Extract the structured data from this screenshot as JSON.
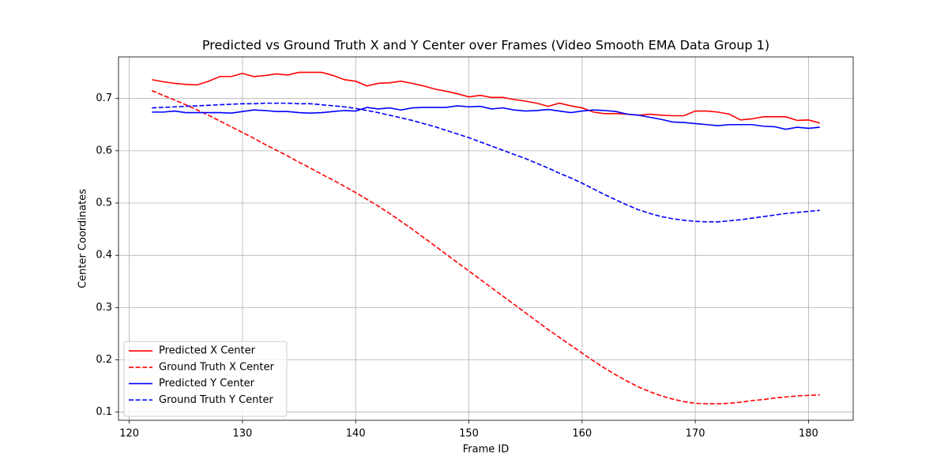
{
  "chart_data": {
    "type": "line",
    "title": "Predicted vs Ground Truth X and Y Center over Frames (Video Smooth EMA Data Group 1)",
    "xlabel": "Frame ID",
    "ylabel": "Center Coordinates",
    "x": [
      122,
      123,
      124,
      125,
      126,
      127,
      128,
      129,
      130,
      131,
      132,
      133,
      134,
      135,
      136,
      137,
      138,
      139,
      140,
      141,
      142,
      143,
      144,
      145,
      146,
      147,
      148,
      149,
      150,
      151,
      152,
      153,
      154,
      155,
      156,
      157,
      158,
      159,
      160,
      161,
      162,
      163,
      164,
      165,
      166,
      167,
      168,
      169,
      170,
      171,
      172,
      173,
      174,
      175,
      176,
      177,
      178,
      179,
      180,
      181
    ],
    "series": [
      {
        "name": "Predicted X Center",
        "color": "#ff0000",
        "linestyle": "solid",
        "values": [
          0.736,
          0.732,
          0.729,
          0.727,
          0.726,
          0.733,
          0.742,
          0.742,
          0.748,
          0.742,
          0.744,
          0.747,
          0.745,
          0.75,
          0.75,
          0.75,
          0.744,
          0.736,
          0.733,
          0.724,
          0.729,
          0.73,
          0.733,
          0.729,
          0.724,
          0.718,
          0.714,
          0.709,
          0.703,
          0.706,
          0.702,
          0.702,
          0.698,
          0.695,
          0.691,
          0.685,
          0.691,
          0.686,
          0.682,
          0.674,
          0.671,
          0.671,
          0.67,
          0.668,
          0.67,
          0.668,
          0.667,
          0.667,
          0.676,
          0.676,
          0.674,
          0.67,
          0.659,
          0.661,
          0.665,
          0.665,
          0.665,
          0.658,
          0.659,
          0.653
        ]
      },
      {
        "name": "Ground Truth X Center",
        "color": "#ff0000",
        "linestyle": "dashed",
        "values": [
          0.715,
          0.706,
          0.697,
          0.688,
          0.678,
          0.668,
          0.657,
          0.646,
          0.635,
          0.624,
          0.612,
          0.601,
          0.59,
          0.578,
          0.567,
          0.555,
          0.544,
          0.532,
          0.52,
          0.507,
          0.494,
          0.48,
          0.465,
          0.45,
          0.434,
          0.418,
          0.402,
          0.386,
          0.37,
          0.354,
          0.338,
          0.322,
          0.306,
          0.29,
          0.274,
          0.258,
          0.243,
          0.228,
          0.213,
          0.198,
          0.184,
          0.171,
          0.159,
          0.148,
          0.139,
          0.131,
          0.125,
          0.12,
          0.117,
          0.116,
          0.116,
          0.117,
          0.119,
          0.122,
          0.124,
          0.127,
          0.129,
          0.131,
          0.132,
          0.133
        ]
      },
      {
        "name": "Predicted Y Center",
        "color": "#0000ff",
        "linestyle": "solid",
        "values": [
          0.674,
          0.674,
          0.676,
          0.673,
          0.673,
          0.673,
          0.673,
          0.672,
          0.675,
          0.678,
          0.677,
          0.675,
          0.675,
          0.673,
          0.672,
          0.673,
          0.675,
          0.677,
          0.676,
          0.683,
          0.68,
          0.682,
          0.678,
          0.682,
          0.683,
          0.683,
          0.683,
          0.686,
          0.684,
          0.685,
          0.68,
          0.682,
          0.678,
          0.676,
          0.677,
          0.679,
          0.676,
          0.673,
          0.676,
          0.678,
          0.677,
          0.675,
          0.67,
          0.668,
          0.664,
          0.66,
          0.655,
          0.654,
          0.652,
          0.65,
          0.648,
          0.65,
          0.65,
          0.65,
          0.647,
          0.646,
          0.641,
          0.645,
          0.643,
          0.645
        ]
      },
      {
        "name": "Ground Truth Y Center",
        "color": "#0000ff",
        "linestyle": "dashed",
        "values": [
          0.682,
          0.683,
          0.684,
          0.685,
          0.686,
          0.687,
          0.688,
          0.689,
          0.69,
          0.69,
          0.691,
          0.691,
          0.691,
          0.69,
          0.69,
          0.688,
          0.686,
          0.684,
          0.681,
          0.677,
          0.673,
          0.668,
          0.663,
          0.658,
          0.652,
          0.646,
          0.639,
          0.632,
          0.625,
          0.617,
          0.609,
          0.601,
          0.593,
          0.585,
          0.576,
          0.567,
          0.557,
          0.548,
          0.538,
          0.527,
          0.516,
          0.506,
          0.496,
          0.487,
          0.48,
          0.474,
          0.47,
          0.467,
          0.465,
          0.464,
          0.464,
          0.466,
          0.468,
          0.471,
          0.474,
          0.477,
          0.48,
          0.482,
          0.484,
          0.486
        ]
      }
    ],
    "xlim": [
      119.05,
      183.95
    ],
    "xticks": [
      120,
      130,
      140,
      150,
      160,
      170,
      180
    ],
    "ylim": [
      0.0844,
      0.7796
    ],
    "yticks": [
      0.1,
      0.2,
      0.3,
      0.4,
      0.5,
      0.6,
      0.7
    ],
    "grid": true,
    "legend": "lower left"
  }
}
